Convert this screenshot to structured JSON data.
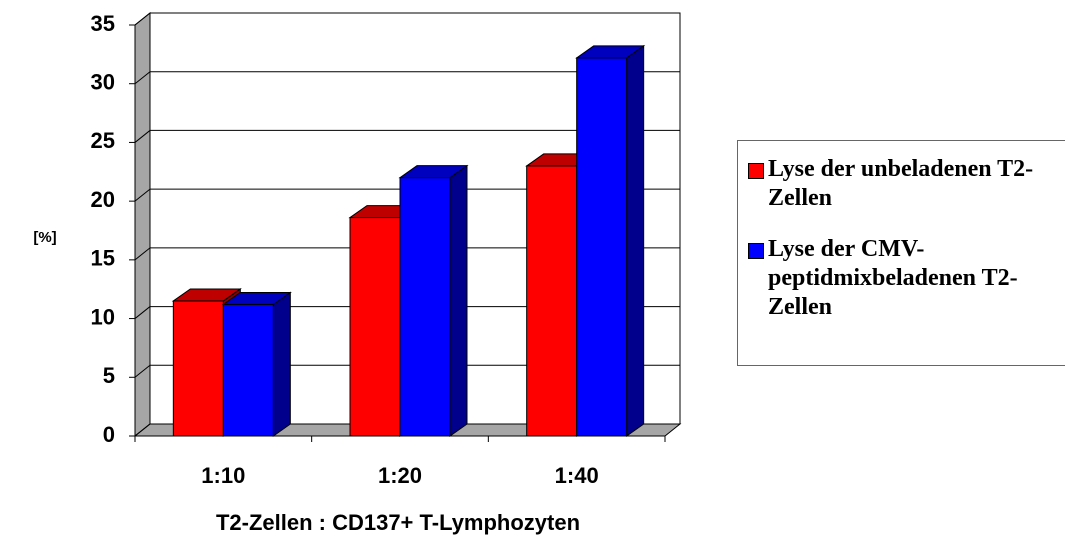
{
  "chart_data": {
    "type": "bar3d",
    "categories": [
      "1:10",
      "1:20",
      "1:40"
    ],
    "series": [
      {
        "name": "Lyse der unbeladenen T2-Zellen",
        "color": "#ff0000",
        "values": [
          11.5,
          18.6,
          23
        ]
      },
      {
        "name": "Lyse der CMV-peptidmixbeladenen T2-Zellen",
        "color": "#0000ff",
        "values": [
          11.2,
          22,
          32.2
        ]
      }
    ],
    "ylim": [
      0,
      35
    ],
    "yticks": [
      0,
      5,
      10,
      15,
      20,
      25,
      30,
      35
    ],
    "grid": true,
    "y_label": "[%]",
    "x_label": "T2-Zellen : CD137+  T-Lymphozyten",
    "legend": "right"
  }
}
